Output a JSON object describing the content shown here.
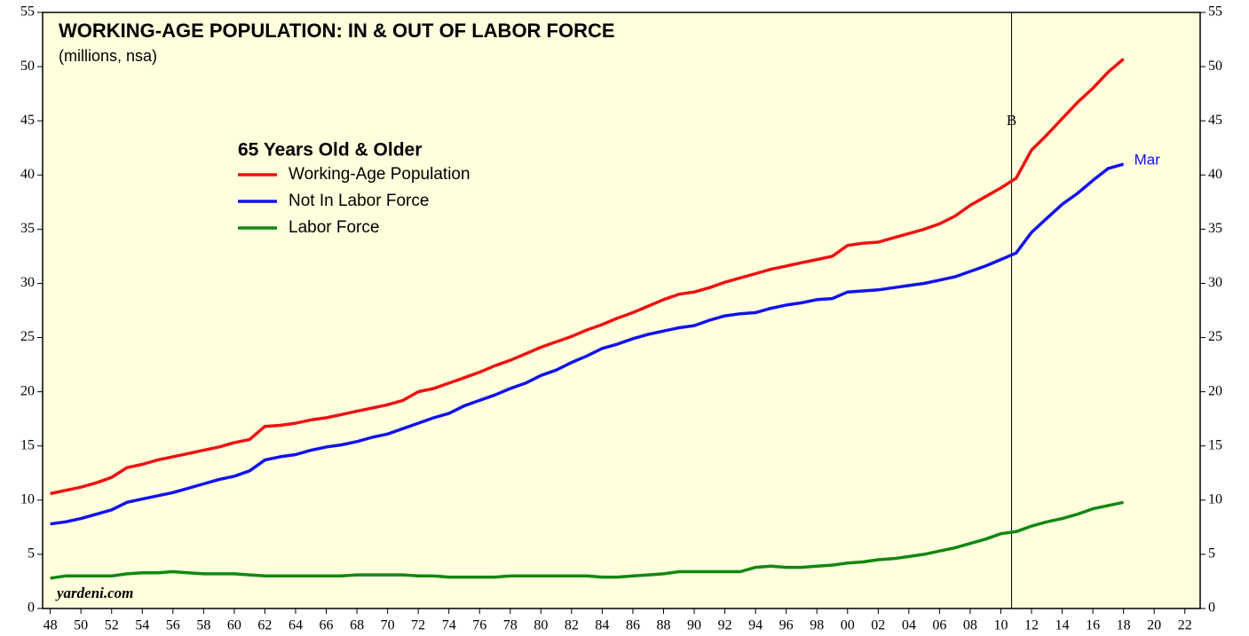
{
  "chart_data": {
    "type": "line",
    "title": "WORKING-AGE POPULATION: IN & OUT OF LABOR FORCE",
    "subtitle": "(millions, nsa)",
    "legend_title": "65 Years Old & Older",
    "source": "yardeni.com",
    "annotations": [
      {
        "text": "B",
        "x": 2010.7
      },
      {
        "text": "Mar"
      }
    ],
    "xlim": [
      1947.5,
      2023
    ],
    "ylim": [
      0,
      55
    ],
    "yticks": [
      0,
      5,
      10,
      15,
      20,
      25,
      30,
      35,
      40,
      45,
      50,
      55
    ],
    "xticks": [
      {
        "value": 1948,
        "label": "48"
      },
      {
        "value": 1950,
        "label": "50"
      },
      {
        "value": 1952,
        "label": "52"
      },
      {
        "value": 1954,
        "label": "54"
      },
      {
        "value": 1956,
        "label": "56"
      },
      {
        "value": 1958,
        "label": "58"
      },
      {
        "value": 1960,
        "label": "60"
      },
      {
        "value": 1962,
        "label": "62"
      },
      {
        "value": 1964,
        "label": "64"
      },
      {
        "value": 1966,
        "label": "66"
      },
      {
        "value": 1968,
        "label": "68"
      },
      {
        "value": 1970,
        "label": "70"
      },
      {
        "value": 1972,
        "label": "72"
      },
      {
        "value": 1974,
        "label": "74"
      },
      {
        "value": 1976,
        "label": "76"
      },
      {
        "value": 1978,
        "label": "78"
      },
      {
        "value": 1980,
        "label": "80"
      },
      {
        "value": 1982,
        "label": "82"
      },
      {
        "value": 1984,
        "label": "84"
      },
      {
        "value": 1986,
        "label": "86"
      },
      {
        "value": 1988,
        "label": "88"
      },
      {
        "value": 1990,
        "label": "90"
      },
      {
        "value": 1992,
        "label": "92"
      },
      {
        "value": 1994,
        "label": "94"
      },
      {
        "value": 1996,
        "label": "96"
      },
      {
        "value": 1998,
        "label": "98"
      },
      {
        "value": 2000,
        "label": "00"
      },
      {
        "value": 2002,
        "label": "02"
      },
      {
        "value": 2004,
        "label": "04"
      },
      {
        "value": 2006,
        "label": "06"
      },
      {
        "value": 2008,
        "label": "08"
      },
      {
        "value": 2010,
        "label": "10"
      },
      {
        "value": 2012,
        "label": "12"
      },
      {
        "value": 2014,
        "label": "14"
      },
      {
        "value": 2016,
        "label": "16"
      },
      {
        "value": 2018,
        "label": "18"
      },
      {
        "value": 2020,
        "label": "20"
      },
      {
        "value": 2022,
        "label": "22"
      }
    ],
    "x": [
      1948,
      1949,
      1950,
      1951,
      1952,
      1953,
      1954,
      1955,
      1956,
      1957,
      1958,
      1959,
      1960,
      1961,
      1962,
      1963,
      1964,
      1965,
      1966,
      1967,
      1968,
      1969,
      1970,
      1971,
      1972,
      1973,
      1974,
      1975,
      1976,
      1977,
      1978,
      1979,
      1980,
      1981,
      1982,
      1983,
      1984,
      1985,
      1986,
      1987,
      1988,
      1989,
      1990,
      1991,
      1992,
      1993,
      1994,
      1995,
      1996,
      1997,
      1998,
      1999,
      2000,
      2001,
      2002,
      2003,
      2004,
      2005,
      2006,
      2007,
      2008,
      2009,
      2010,
      2011,
      2012,
      2013,
      2014,
      2015,
      2016,
      2017,
      2018
    ],
    "series": [
      {
        "name": "Working-Age Population",
        "color": "#ee1111",
        "values": [
          10.6,
          10.9,
          11.2,
          11.6,
          12.1,
          13.0,
          13.3,
          13.7,
          14.0,
          14.3,
          14.6,
          14.9,
          15.3,
          15.6,
          16.8,
          16.9,
          17.1,
          17.4,
          17.6,
          17.9,
          18.2,
          18.5,
          18.8,
          19.2,
          20.0,
          20.3,
          20.8,
          21.3,
          21.8,
          22.4,
          22.9,
          23.5,
          24.1,
          24.6,
          25.1,
          25.7,
          26.2,
          26.8,
          27.3,
          27.9,
          28.5,
          29.0,
          29.2,
          29.6,
          30.1,
          30.5,
          30.9,
          31.3,
          31.6,
          31.9,
          32.2,
          32.5,
          33.5,
          33.7,
          33.8,
          34.2,
          34.6,
          35.0,
          35.5,
          36.2,
          37.2,
          38.0,
          38.8,
          39.7,
          42.3,
          43.7,
          45.2,
          46.7,
          48.0,
          49.5,
          50.7
        ]
      },
      {
        "name": "Not In Labor Force",
        "color": "#1111ee",
        "values": [
          7.8,
          8.0,
          8.3,
          8.7,
          9.1,
          9.8,
          10.1,
          10.4,
          10.7,
          11.1,
          11.5,
          11.9,
          12.2,
          12.7,
          13.7,
          14.0,
          14.2,
          14.6,
          14.9,
          15.1,
          15.4,
          15.8,
          16.1,
          16.6,
          17.1,
          17.6,
          18.0,
          18.7,
          19.2,
          19.7,
          20.3,
          20.8,
          21.5,
          22.0,
          22.7,
          23.3,
          24.0,
          24.4,
          24.9,
          25.3,
          25.6,
          25.9,
          26.1,
          26.6,
          27.0,
          27.2,
          27.3,
          27.7,
          28.0,
          28.2,
          28.5,
          28.6,
          29.2,
          29.3,
          29.4,
          29.6,
          29.8,
          30.0,
          30.3,
          30.6,
          31.1,
          31.6,
          32.2,
          32.8,
          34.7,
          36.0,
          37.3,
          38.3,
          39.5,
          40.6,
          41.0
        ]
      },
      {
        "name": "Labor Force",
        "color": "#118811",
        "values": [
          2.8,
          3.0,
          3.0,
          3.0,
          3.0,
          3.2,
          3.3,
          3.3,
          3.4,
          3.3,
          3.2,
          3.2,
          3.2,
          3.1,
          3.0,
          3.0,
          3.0,
          3.0,
          3.0,
          3.0,
          3.1,
          3.1,
          3.1,
          3.1,
          3.0,
          3.0,
          2.9,
          2.9,
          2.9,
          2.9,
          3.0,
          3.0,
          3.0,
          3.0,
          3.0,
          3.0,
          2.9,
          2.9,
          3.0,
          3.1,
          3.2,
          3.4,
          3.4,
          3.4,
          3.4,
          3.4,
          3.8,
          3.9,
          3.8,
          3.8,
          3.9,
          4.0,
          4.2,
          4.3,
          4.5,
          4.6,
          4.8,
          5.0,
          5.3,
          5.6,
          6.0,
          6.4,
          6.9,
          7.1,
          7.6,
          8.0,
          8.3,
          8.7,
          9.2,
          9.5,
          9.8
        ]
      }
    ],
    "background": "#ffffdd"
  }
}
